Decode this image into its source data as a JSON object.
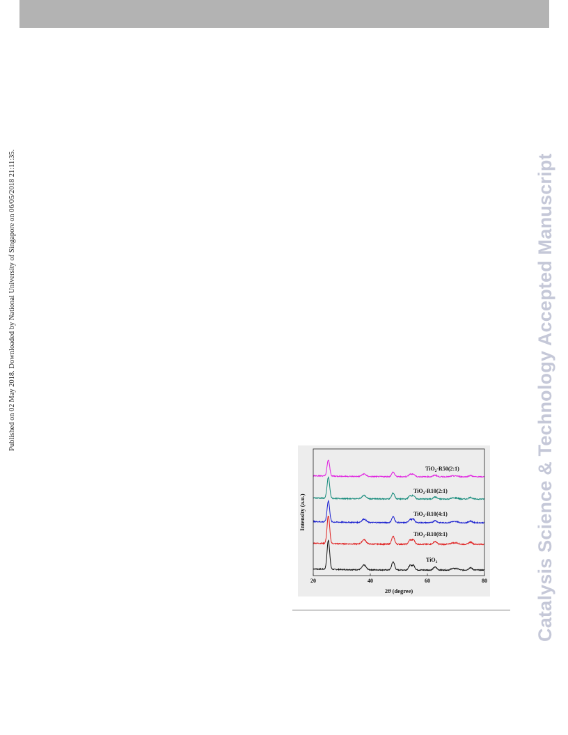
{
  "side_note": "Published on 02 May 2018. Downloaded by National University of Singapore on 06/05/2018 21:11:35.",
  "watermark": "Catalysis Science & Technology Accepted Manuscript",
  "chart_data": {
    "type": "line",
    "xlabel": "2θ (degree)",
    "ylabel": "Intensity (a.u.)",
    "xlim": [
      20,
      80
    ],
    "xticks": [
      20,
      40,
      60,
      80
    ],
    "grid": false,
    "legend": "none",
    "peaks": [
      {
        "pos": 25.3,
        "height": 1.0,
        "width": 0.45
      },
      {
        "pos": 37.8,
        "height": 0.16,
        "width": 0.7
      },
      {
        "pos": 48.0,
        "height": 0.28,
        "width": 0.5
      },
      {
        "pos": 53.9,
        "height": 0.15,
        "width": 0.5
      },
      {
        "pos": 55.1,
        "height": 0.16,
        "width": 0.5
      },
      {
        "pos": 62.7,
        "height": 0.1,
        "width": 0.6
      },
      {
        "pos": 68.8,
        "height": 0.05,
        "width": 0.6
      },
      {
        "pos": 70.3,
        "height": 0.05,
        "width": 0.6
      },
      {
        "pos": 75.1,
        "height": 0.08,
        "width": 0.6
      }
    ],
    "series": [
      {
        "label_main": "TiO",
        "label_sub": "2",
        "label_rest": "",
        "color": "#111111",
        "offset": 0,
        "scale": 1.0
      },
      {
        "label_main": "TiO",
        "label_sub": "2",
        "label_rest": "-R10(8:1)",
        "color": "#e02020",
        "offset": 1,
        "scale": 0.95
      },
      {
        "label_main": "TiO",
        "label_sub": "2",
        "label_rest": "-R10(4:1)",
        "color": "#1a20d0",
        "offset": 2,
        "scale": 0.72
      },
      {
        "label_main": "TiO",
        "label_sub": "2",
        "label_rest": "-R10(2:1)",
        "color": "#138a7a",
        "offset": 3,
        "scale": 0.72
      },
      {
        "label_main": "TiO",
        "label_sub": "2",
        "label_rest": "-R50(2:1)",
        "color": "#e020e0",
        "offset": 4,
        "scale": 0.55
      }
    ]
  }
}
